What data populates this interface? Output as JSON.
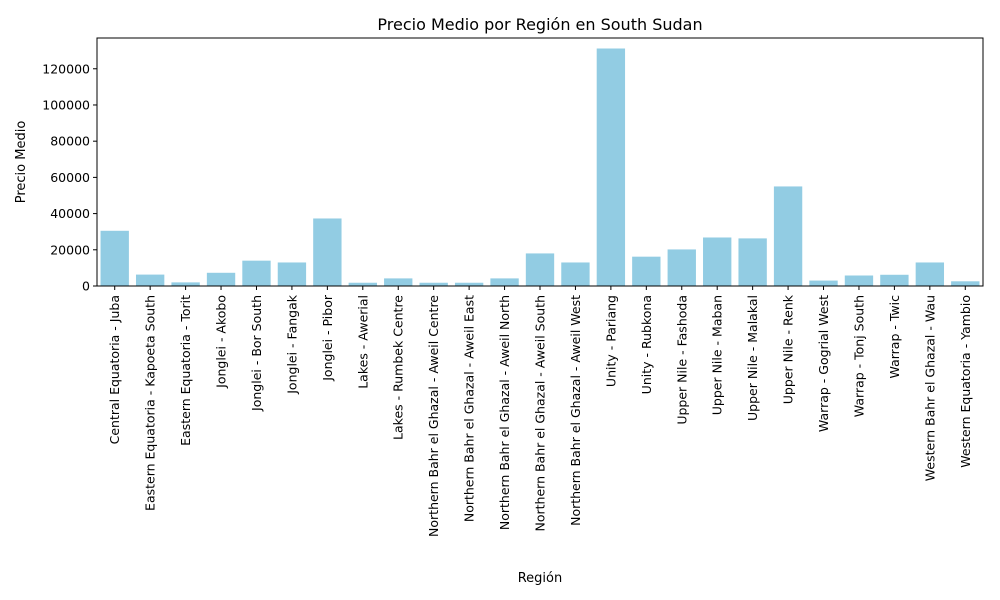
{
  "chart_data": {
    "type": "bar",
    "title": "Precio Medio por Región en South Sudan",
    "xlabel": "Región",
    "ylabel": "Precio Medio",
    "ylim": [
      0,
      137000
    ],
    "yticks": [
      0,
      20000,
      40000,
      60000,
      80000,
      100000,
      120000
    ],
    "grid": false,
    "bar_color": "#92cce3",
    "categories": [
      "Central Equatoria - Juba",
      "Eastern Equatoria - Kapoeta South",
      "Eastern Equatoria - Torit",
      "Jonglei - Akobo",
      "Jonglei - Bor South",
      "Jonglei - Fangak",
      "Jonglei - Pibor",
      "Lakes - Awerial",
      "Lakes - Rumbek Centre",
      "Northern Bahr el Ghazal - Aweil Centre",
      "Northern Bahr el Ghazal - Aweil East",
      "Northern Bahr el Ghazal - Aweil North",
      "Northern Bahr el Ghazal - Aweil South",
      "Northern Bahr el Ghazal - Aweil West",
      "Unity - Pariang",
      "Unity - Rubkona",
      "Upper Nile - Fashoda",
      "Upper Nile - Maban",
      "Upper Nile - Malakal",
      "Upper Nile - Renk",
      "Warrap - Gogrial West",
      "Warrap - Tonj South",
      "Warrap - Twic",
      "Western Bahr el Ghazal - Wau",
      "Western Equatoria - Yambio"
    ],
    "values": [
      30500,
      6300,
      2000,
      7300,
      14000,
      13000,
      37300,
      1800,
      4200,
      1800,
      1800,
      4200,
      18000,
      13000,
      131200,
      16200,
      20200,
      26800,
      26300,
      55000,
      3000,
      5800,
      6200,
      13000,
      2600
    ]
  }
}
